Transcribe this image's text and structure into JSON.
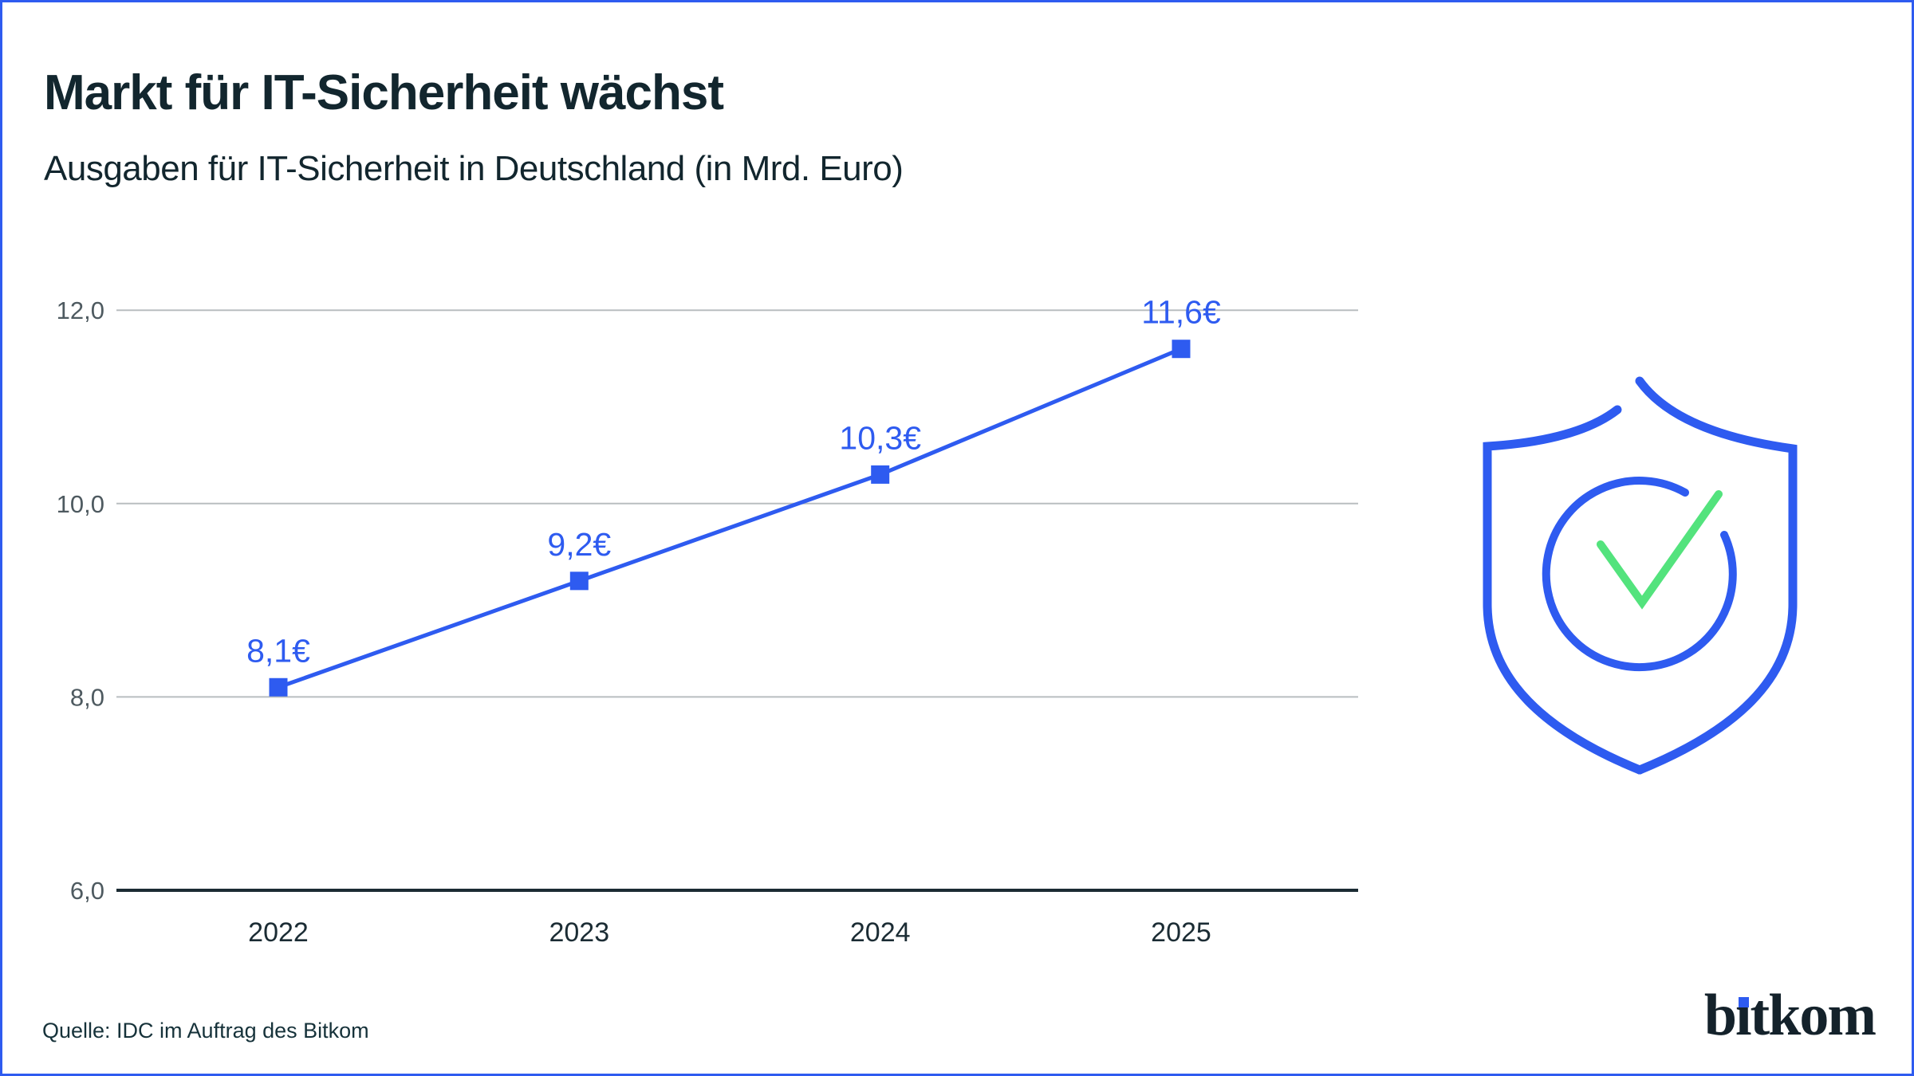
{
  "header": {
    "title": "Markt für IT-Sicherheit wächst",
    "subtitle": "Ausgaben für IT-Sicherheit in Deutschland (in Mrd. Euro)"
  },
  "chart_data": {
    "type": "line",
    "title": "Markt für IT-Sicherheit wächst",
    "subtitle": "Ausgaben für IT-Sicherheit in Deutschland (in Mrd. Euro)",
    "categories": [
      "2022",
      "2023",
      "2024",
      "2025"
    ],
    "series": [
      {
        "name": "Ausgaben für IT-Sicherheit in Deutschland (in Mrd. Euro)",
        "values": [
          8.1,
          9.2,
          10.3,
          11.6
        ],
        "point_labels": [
          "8,1€",
          "9,2€",
          "10,3€",
          "11,6€"
        ]
      }
    ],
    "xlabel": "",
    "ylabel": "",
    "ylim": [
      6.0,
      12.0
    ],
    "yticks": [
      6.0,
      8.0,
      10.0,
      12.0
    ],
    "ytick_labels": [
      "6,0",
      "8,0",
      "10,0",
      "12,0"
    ],
    "grid": "horizontal light gridlines at 8, 10, 12; dark solid baseline at 6",
    "legend": "none",
    "marker_style": "filled square",
    "line_color": "#2E5BF0",
    "point_label_color": "#2E5BF0"
  },
  "footer": {
    "source": "Quelle: IDC im Auftrag des Bitkom",
    "logo_text": "bitkom"
  },
  "icons": {
    "shield_check": "blue outline shield containing circle with green checkmark"
  },
  "colors": {
    "accent_blue": "#2E5BF0",
    "check_green": "#53E37D",
    "dark_text": "#12262E",
    "year_label": "#1B2C34",
    "tick_gray": "#4E5A60",
    "gridline_gray": "#B9BEC0",
    "axis_dark": "#1B2B33",
    "background": "#FFFFFF"
  }
}
